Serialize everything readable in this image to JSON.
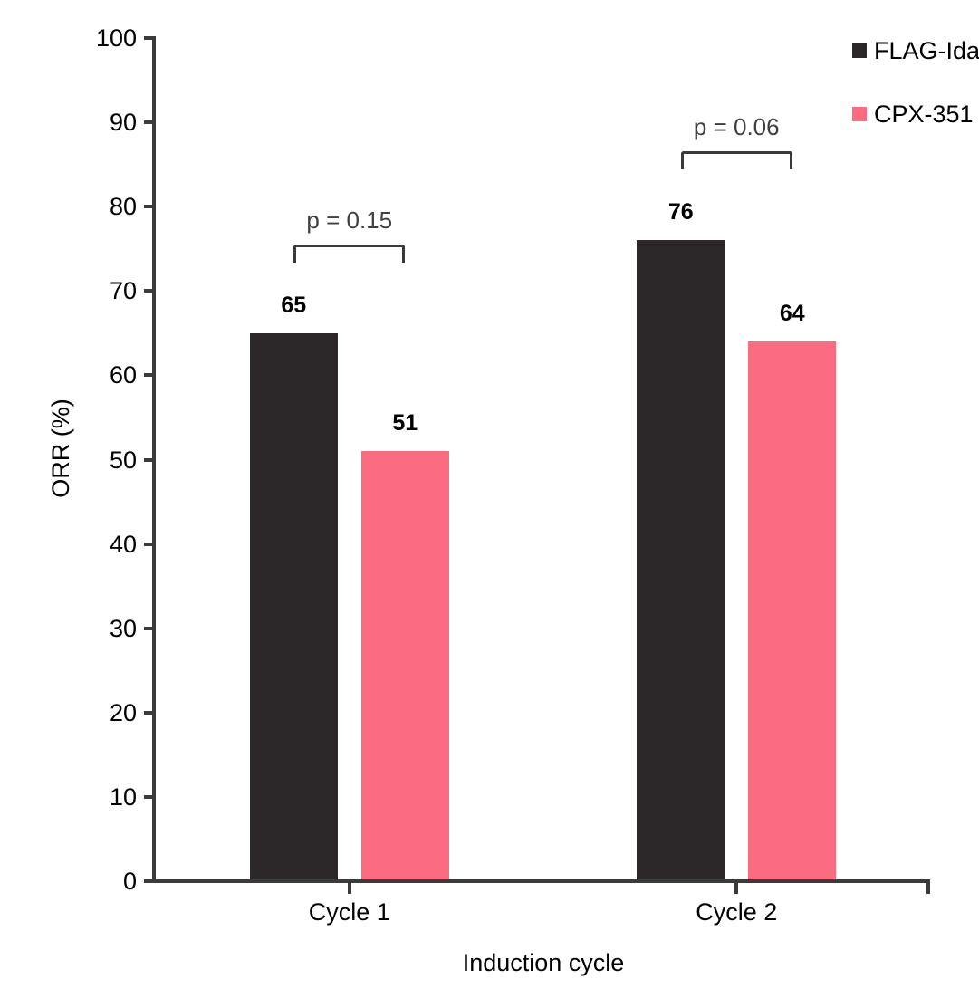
{
  "chart_data": {
    "type": "bar",
    "title": "",
    "xlabel": "Induction cycle",
    "ylabel": "ORR (%)",
    "categories": [
      "Cycle 1",
      "Cycle 2"
    ],
    "series": [
      {
        "name": "FLAG-Ida",
        "color": "#2C282A",
        "values": [
          65,
          76
        ]
      },
      {
        "name": "CPX-351",
        "color": "#FC6C80",
        "values": [
          51,
          64
        ]
      }
    ],
    "y_ticks": [
      0,
      10,
      20,
      30,
      40,
      50,
      60,
      70,
      80,
      90,
      100
    ],
    "ylim": [
      0,
      100
    ],
    "grid": "off",
    "legend_position": "top-right",
    "annotations": [
      {
        "category": "Cycle 1",
        "label": "p = 0.15"
      },
      {
        "category": "Cycle 2",
        "label": "p = 0.06"
      }
    ]
  },
  "style": {
    "axis_color": "#3B3B3B",
    "annotation_color": "#3F3F3F",
    "text_color": "#000000",
    "background": "#FFFFFF"
  }
}
